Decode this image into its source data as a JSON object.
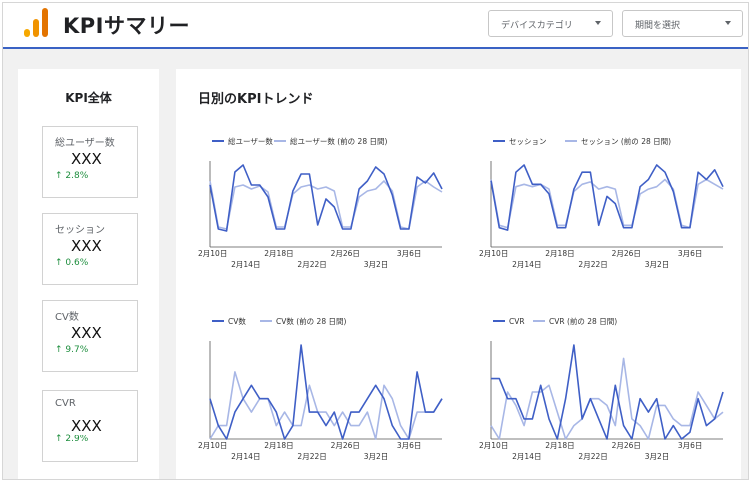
{
  "header": {
    "title": "KPIサマリー",
    "device_select": "デバイスカテゴリ",
    "period_select": "期間を選択"
  },
  "kpi": {
    "heading": "KPI全体",
    "cards": [
      {
        "label": "総ユーザー数",
        "value": "XXX",
        "delta": "2.8%"
      },
      {
        "label": "セッション",
        "value": "XXX",
        "delta": "0.6%"
      },
      {
        "label": "CV数",
        "value": "XXX",
        "delta": "9.7%"
      },
      {
        "label": "CVR",
        "value": "XXX",
        "delta": "2.9%"
      }
    ]
  },
  "trend": {
    "title": "日別のKPIトレンド"
  },
  "colors": {
    "current": "#3f5fc6",
    "previous": "#a8b7e6",
    "delta_up": "#1e8e3e",
    "header_rule": "#3a62c4"
  },
  "chart_data": [
    {
      "type": "line",
      "x_tick_labels_top": [
        "2月10日",
        "2月18日",
        "2月26日",
        "3月6日"
      ],
      "x_tick_labels_bottom": [
        "2月14日",
        "2月22日",
        "3月2日"
      ],
      "series": [
        {
          "name": "総ユーザー数",
          "values": [
            62,
            18,
            16,
            75,
            82,
            62,
            62,
            50,
            18,
            18,
            56,
            73,
            73,
            22,
            48,
            40,
            18,
            18,
            58,
            66,
            80,
            73,
            52,
            18,
            18,
            70,
            64,
            74,
            58
          ]
        },
        {
          "name": "総ユーザー数 (前の 28 日間)",
          "values": [
            66,
            20,
            18,
            60,
            62,
            58,
            61,
            55,
            20,
            20,
            53,
            60,
            62,
            58,
            60,
            56,
            20,
            20,
            50,
            56,
            58,
            66,
            56,
            20,
            18,
            60,
            66,
            60,
            55
          ]
        }
      ]
    },
    {
      "type": "line",
      "x_tick_labels_top": [
        "2月10日",
        "2月18日",
        "2月26日",
        "3月6日"
      ],
      "x_tick_labels_bottom": [
        "2月14日",
        "2月22日",
        "3月2日"
      ],
      "series": [
        {
          "name": "セッション",
          "values": [
            55,
            16,
            14,
            62,
            68,
            52,
            52,
            44,
            16,
            16,
            48,
            62,
            62,
            18,
            42,
            36,
            16,
            16,
            50,
            56,
            68,
            62,
            46,
            16,
            16,
            62,
            56,
            64,
            50
          ]
        },
        {
          "name": "セッション (前の 28 日間)",
          "values": [
            56,
            18,
            16,
            50,
            52,
            50,
            52,
            48,
            18,
            18,
            46,
            52,
            54,
            48,
            50,
            48,
            18,
            18,
            44,
            48,
            50,
            56,
            48,
            18,
            16,
            52,
            56,
            52,
            48
          ]
        }
      ]
    },
    {
      "type": "line",
      "x_tick_labels_top": [
        "2月10日",
        "2月18日",
        "2月26日",
        "3月6日"
      ],
      "x_tick_labels_bottom": [
        "2月14日",
        "2月22日",
        "3月2日"
      ],
      "series": [
        {
          "name": "CV数",
          "values": [
            3,
            1,
            0,
            2,
            3,
            4,
            3,
            3,
            2,
            0,
            1,
            7,
            2,
            2,
            1,
            2,
            0,
            2,
            2,
            3,
            4,
            3,
            1,
            0,
            0,
            5,
            2,
            2,
            3
          ]
        },
        {
          "name": "CV数 (前の 28 日間)",
          "values": [
            0,
            1,
            1,
            5,
            3,
            2,
            3,
            3,
            1,
            2,
            1,
            1,
            4,
            2,
            2,
            1,
            2,
            1,
            1,
            2,
            0,
            4,
            3,
            1,
            0,
            2,
            2,
            2,
            3
          ]
        }
      ]
    },
    {
      "type": "line",
      "x_tick_labels_top": [
        "2月10日",
        "2月18日",
        "2月26日",
        "3月6日"
      ],
      "x_tick_labels_bottom": [
        "2月14日",
        "2月22日",
        "3月2日"
      ],
      "series": [
        {
          "name": "CVR",
          "values": [
            4.5,
            4.5,
            3,
            3,
            1.5,
            1.5,
            4,
            1.5,
            0,
            3,
            7,
            1.5,
            3,
            1.5,
            0,
            4,
            1,
            0,
            3,
            2,
            3,
            0,
            1,
            0,
            0.5,
            3,
            1,
            1.5,
            3.5
          ]
        },
        {
          "name": "CVR (前の 28 日間)",
          "values": [
            1,
            0,
            3.5,
            2.5,
            1,
            3.5,
            3.5,
            4,
            2,
            0,
            1,
            1.5,
            3,
            3,
            2.5,
            1,
            6,
            1.5,
            1,
            0,
            2.5,
            2.5,
            1.5,
            1,
            1,
            3.5,
            2.5,
            1.5,
            2
          ]
        }
      ]
    }
  ]
}
